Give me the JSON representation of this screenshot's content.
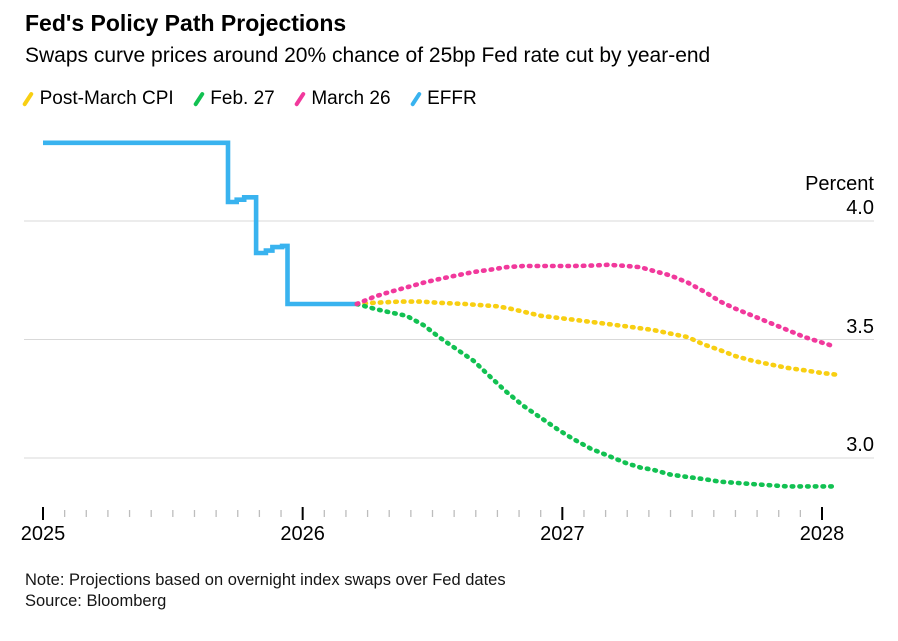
{
  "header": {
    "title": "Fed's Policy Path Projections",
    "subtitle": "Swaps curve prices around 20% chance of 25bp Fed rate cut by year-end"
  },
  "footer": {
    "note": "Note: Projections based on overnight index swaps over Fed dates",
    "source": "Source: Bloomberg"
  },
  "colors": {
    "post_march_cpi": "#f8cf12",
    "feb_27": "#12c152",
    "march_26": "#f1399c",
    "effr": "#39b3ef",
    "gridline": "#d9d9d9",
    "minor_tick": "#bdbdbd",
    "major_tick": "#000000"
  },
  "chart_data": {
    "type": "line",
    "title": "Fed's Policy Path Projections",
    "subtitle": "Swaps curve prices around 20% chance of 25bp Fed rate cut by year-end",
    "x_axis": {
      "unit": "months since Jan 2025",
      "range_months": [
        0,
        37
      ],
      "minor_tick_interval_months": 1,
      "ticks": [
        {
          "month": 0,
          "label": "2025"
        },
        {
          "month": 12,
          "label": "2026"
        },
        {
          "month": 24,
          "label": "2027"
        },
        {
          "month": 36,
          "label": "2028"
        }
      ]
    },
    "y_axis": {
      "label": "Percent",
      "range": [
        2.75,
        4.45
      ],
      "ticks": [
        {
          "value": 4.0,
          "label": "4.0"
        },
        {
          "value": 3.5,
          "label": "3.5"
        },
        {
          "value": 3.0,
          "label": "3.0"
        }
      ],
      "grid": true
    },
    "legend_position": "top",
    "series": [
      {
        "name": "Post-March CPI",
        "color": "#f8cf12",
        "style": "dotted",
        "points": [
          [
            14.5,
            3.65
          ],
          [
            15.3,
            3.655
          ],
          [
            16.5,
            3.66
          ],
          [
            17.5,
            3.66
          ],
          [
            18.3,
            3.655
          ],
          [
            19.5,
            3.65
          ],
          [
            20.2,
            3.645
          ],
          [
            21.0,
            3.64
          ],
          [
            21.6,
            3.63
          ],
          [
            22.3,
            3.615
          ],
          [
            23.0,
            3.6
          ],
          [
            24.4,
            3.585
          ],
          [
            25.7,
            3.57
          ],
          [
            27.0,
            3.555
          ],
          [
            28.2,
            3.54
          ],
          [
            29.0,
            3.525
          ],
          [
            29.8,
            3.51
          ],
          [
            30.5,
            3.48
          ],
          [
            31.3,
            3.455
          ],
          [
            32.0,
            3.43
          ],
          [
            32.8,
            3.41
          ],
          [
            33.6,
            3.395
          ],
          [
            34.4,
            3.38
          ],
          [
            35.2,
            3.37
          ],
          [
            35.9,
            3.36
          ],
          [
            36.8,
            3.35
          ]
        ]
      },
      {
        "name": "Feb. 27",
        "color": "#12c152",
        "style": "dotted",
        "points": [
          [
            14.5,
            3.65
          ],
          [
            15.3,
            3.63
          ],
          [
            16.0,
            3.615
          ],
          [
            16.8,
            3.6
          ],
          [
            17.6,
            3.56
          ],
          [
            18.3,
            3.51
          ],
          [
            19.1,
            3.46
          ],
          [
            19.9,
            3.41
          ],
          [
            20.7,
            3.34
          ],
          [
            21.4,
            3.28
          ],
          [
            22.2,
            3.22
          ],
          [
            23.0,
            3.17
          ],
          [
            23.8,
            3.12
          ],
          [
            24.5,
            3.08
          ],
          [
            25.3,
            3.04
          ],
          [
            26.1,
            3.01
          ],
          [
            26.9,
            2.98
          ],
          [
            27.6,
            2.96
          ],
          [
            28.2,
            2.95
          ],
          [
            29.0,
            2.93
          ],
          [
            29.8,
            2.92
          ],
          [
            30.6,
            2.91
          ],
          [
            31.3,
            2.9
          ],
          [
            32.8,
            2.89
          ],
          [
            34.4,
            2.88
          ],
          [
            36.0,
            2.88
          ],
          [
            36.7,
            2.88
          ]
        ]
      },
      {
        "name": "March 26",
        "color": "#f1399c",
        "style": "dotted",
        "points": [
          [
            14.5,
            3.65
          ],
          [
            15.3,
            3.68
          ],
          [
            16.0,
            3.7
          ],
          [
            16.8,
            3.72
          ],
          [
            17.6,
            3.74
          ],
          [
            18.3,
            3.755
          ],
          [
            19.1,
            3.77
          ],
          [
            19.9,
            3.785
          ],
          [
            20.7,
            3.795
          ],
          [
            21.4,
            3.805
          ],
          [
            22.2,
            3.81
          ],
          [
            23.0,
            3.81
          ],
          [
            24.5,
            3.81
          ],
          [
            25.3,
            3.812
          ],
          [
            26.1,
            3.815
          ],
          [
            27.0,
            3.81
          ],
          [
            27.6,
            3.805
          ],
          [
            28.2,
            3.79
          ],
          [
            29.0,
            3.77
          ],
          [
            29.8,
            3.74
          ],
          [
            30.6,
            3.7
          ],
          [
            31.3,
            3.66
          ],
          [
            32.0,
            3.63
          ],
          [
            32.8,
            3.6
          ],
          [
            33.6,
            3.57
          ],
          [
            34.4,
            3.54
          ],
          [
            35.2,
            3.51
          ],
          [
            35.9,
            3.49
          ],
          [
            36.6,
            3.47
          ]
        ]
      },
      {
        "name": "EFFR",
        "color": "#39b3ef",
        "style": "solid",
        "points": [
          [
            0,
            4.33
          ],
          [
            8.55,
            4.33
          ],
          [
            8.55,
            4.08
          ],
          [
            8.95,
            4.08
          ],
          [
            8.95,
            4.09
          ],
          [
            9.3,
            4.09
          ],
          [
            9.3,
            4.1
          ],
          [
            9.85,
            4.1
          ],
          [
            9.85,
            3.865
          ],
          [
            10.3,
            3.865
          ],
          [
            10.3,
            3.875
          ],
          [
            10.6,
            3.875
          ],
          [
            10.6,
            3.89
          ],
          [
            11.05,
            3.89
          ],
          [
            11.05,
            3.895
          ],
          [
            11.3,
            3.895
          ],
          [
            11.3,
            3.65
          ],
          [
            14.5,
            3.65
          ]
        ]
      }
    ]
  }
}
